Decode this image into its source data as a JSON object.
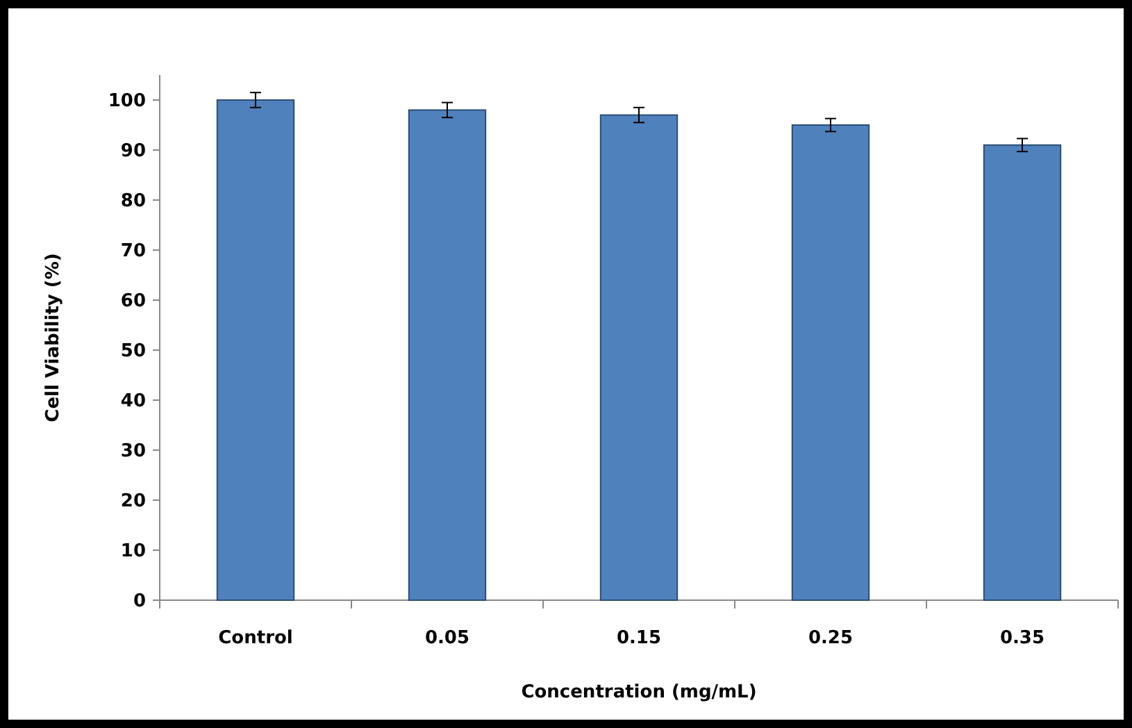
{
  "chart_data": {
    "type": "bar",
    "xlabel": "Concentration (mg/mL)",
    "ylabel": "Cell Viability (%)",
    "categories": [
      "Control",
      "0.05",
      "0.15",
      "0.25",
      "0.35"
    ],
    "values": [
      100,
      98,
      97,
      95,
      91
    ],
    "errors": [
      1.5,
      1.5,
      1.5,
      1.3,
      1.3
    ],
    "color": "#4f81bd",
    "ylim": [
      0,
      105
    ],
    "yticks": [
      0,
      10,
      20,
      30,
      40,
      50,
      60,
      70,
      80,
      90,
      100
    ],
    "grid": false
  }
}
